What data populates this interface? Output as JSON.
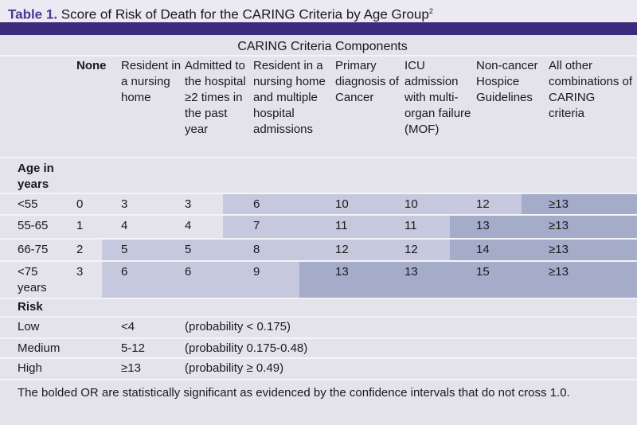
{
  "title": {
    "label": "Table 1.",
    "text": "Score of Risk of Death for the CARING Criteria by Age Group",
    "superscript": "2"
  },
  "table": {
    "group_header": "CARING Criteria Components",
    "columns": [
      "None",
      "Resident in a nursing home",
      "Admitted to the hospital ≥2 times in the past year",
      "Resident in a nursing home and multiple hospital admissions",
      "Primary diagnosis of Cancer",
      "ICU admission with multi-organ failure (MOF)",
      "Non-cancer Hospice Guidelines",
      "All other combinations of CARING criteria"
    ],
    "age_header": "Age in years",
    "rows": [
      [
        "<55",
        "0",
        "3",
        "3",
        "6",
        "10",
        "10",
        "12",
        "≥13"
      ],
      [
        "55-65",
        "1",
        "4",
        "4",
        "7",
        "11",
        "11",
        "13",
        "≥13"
      ],
      [
        "66-75",
        "2",
        "5",
        "5",
        "8",
        "12",
        "12",
        "14",
        "≥13"
      ],
      [
        "<75 years",
        "3",
        "6",
        "6",
        "9",
        "13",
        "13",
        "15",
        "≥13"
      ]
    ],
    "risk_header": "Risk",
    "risk_rows": [
      [
        "Low",
        "<4",
        "(probability < 0.175)"
      ],
      [
        "Medium",
        "5-12",
        "(probability 0.175-0.48)"
      ],
      [
        "High",
        "≥13",
        "(probability ≥ 0.49)"
      ]
    ]
  },
  "footnote": "The bolded OR are statistically significant as evidenced by the confidence intervals that do not cross 1.0."
}
